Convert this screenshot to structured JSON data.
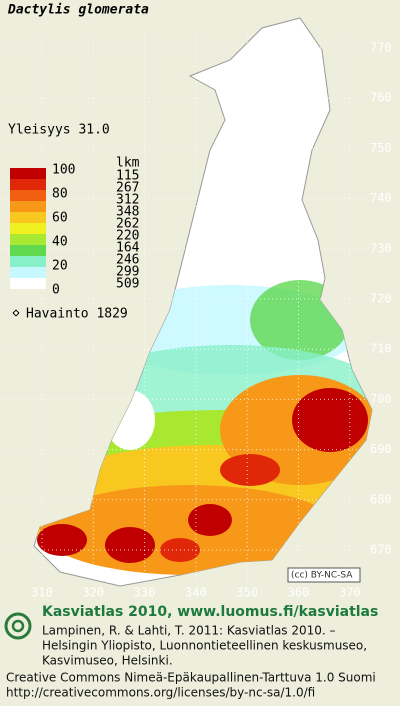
{
  "title": "Dactylis glomerata",
  "frequency": "Yleisyys  31.0",
  "legend": {
    "scale_labels": [
      100,
      80,
      60,
      40,
      20,
      0
    ],
    "count_header": "lkm",
    "counts": [
      115,
      267,
      312,
      348,
      262,
      220,
      164,
      246,
      299,
      509
    ],
    "colors": [
      "#c00000",
      "#e02808",
      "#f06010",
      "#f89818",
      "#f8c820",
      "#f0f020",
      "#a8e830",
      "#60d850",
      "#88f0c8",
      "#c8f8ff"
    ],
    "observations": "Havainto 1829"
  },
  "grid": {
    "y_labels": [
      770,
      760,
      750,
      740,
      730,
      720,
      710,
      700,
      690,
      680,
      670
    ],
    "x_labels": [
      310,
      320,
      330,
      340,
      350,
      360,
      370
    ]
  },
  "license_badge": "(cc) BY-NC-SA",
  "footer": {
    "heading": "Kasviatlas 2010, www.luomus.fi/kasviatlas",
    "citation": [
      "Lampinen, R. & Lahti, T. 2011: Kasviatlas 2010. –",
      "Helsingin Yliopisto, Luonnontieteellinen keskusmuseo,",
      "Kasvimuseo, Helsinki."
    ],
    "license": [
      "Creative Commons Nimeä-Epäkaupallinen-Tarttuva 1.0 Suomi",
      "http://creativecommons.org/licenses/by-nc-sa/1.0/fi"
    ]
  }
}
